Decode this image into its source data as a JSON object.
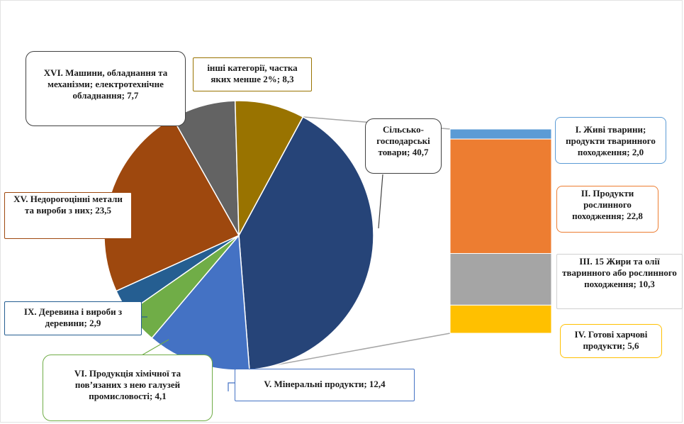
{
  "chart_data": {
    "type": "bar-of-pie",
    "pie": [
      {
        "label": "Сільсько-господарські товари; 40,7",
        "value": 40.7,
        "color": "#264478"
      },
      {
        "label": "V. Мінеральні продукти; 12,4",
        "value": 12.4,
        "color": "#4472C4"
      },
      {
        "label": "VI. Продукція хімічної та пов’язаних з нею галузей промисловості; 4,1",
        "value": 4.1,
        "color": "#70AD47"
      },
      {
        "label": "IX. Деревина і вироби з деревини; 2,9",
        "value": 2.9,
        "color": "#255E91"
      },
      {
        "label": "XV. Недорогоцінні метали та вироби з них; 23,5",
        "value": 23.5,
        "color": "#9E480E"
      },
      {
        "label": "XVI. Машини, обладнання та механізми; електротехнічне обладнання; 7,7",
        "value": 7.7,
        "color": "#636363"
      },
      {
        "label": "інші категорії, частка яких менше 2%; 8,3",
        "value": 8.3,
        "color": "#997300"
      }
    ],
    "bar": [
      {
        "label": "I. Живі тварини; продукти тваринного походження; 2,0",
        "value": 2.0,
        "color": "#5B9BD5"
      },
      {
        "label": "II. Продукти рослинного походження; 22,8",
        "value": 22.8,
        "color": "#ED7D31"
      },
      {
        "label": "III. 15 Жири та олії тваринного або рослинного походження; 10,3",
        "value": 10.3,
        "color": "#A5A5A5"
      },
      {
        "label": "IV. Готові харчові продукти; 5,6",
        "value": 5.6,
        "color": "#FFC000"
      }
    ]
  },
  "labels": {
    "agri": "Сільсько-господарські товари; 40,7",
    "mineral": "V. Мінеральні продукти; 12,4",
    "chem": "VI. Продукція хімічної та пов’язаних з нею галузей промисловості; 4,1",
    "wood": "IX. Деревина і вироби з деревини; 2,9",
    "metals": "XV. Недорогоцінні метали та вироби з них; 23,5",
    "machines": "XVI. Машини, обладнання та механізми; електротехнічне обладнання; 7,7",
    "other": "інші категорії, частка яких менше 2%; 8,3",
    "live": "I. Живі тварини; продукти тваринного походження; 2,0",
    "plant": "II. Продукти рослинного походження; 22,8",
    "fats": "III. 15 Жири та олії тваринного або рослинного походження; 10,3",
    "food": "IV. Готові харчові продукти; 5,6"
  }
}
